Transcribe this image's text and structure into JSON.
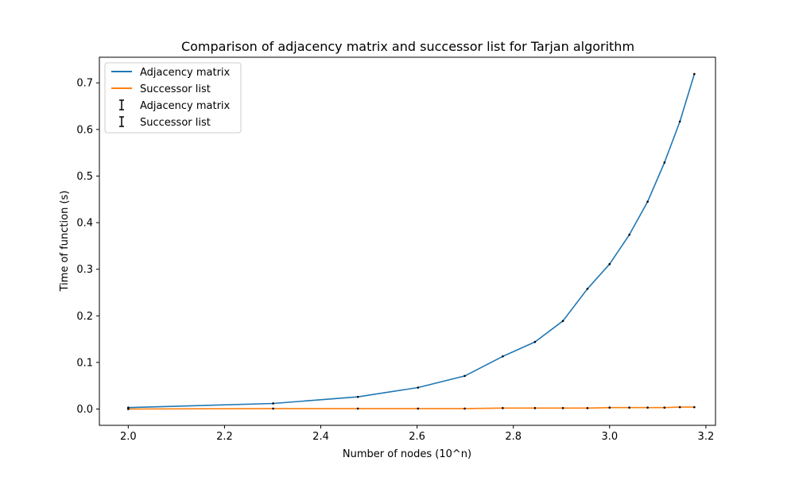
{
  "chart_data": {
    "type": "line",
    "title": "Comparison of adjacency matrix and successor list for Tarjan algorithm",
    "xlabel": "Number of nodes (10^n)",
    "ylabel": "Time of function (s)",
    "xlim": [
      1.94,
      3.22
    ],
    "ylim": [
      -0.035,
      0.755
    ],
    "xticks": [
      "2.0",
      "2.2",
      "2.4",
      "2.6",
      "2.8",
      "3.0",
      "3.2"
    ],
    "yticks": [
      "0.0",
      "0.1",
      "0.2",
      "0.3",
      "0.4",
      "0.5",
      "0.6",
      "0.7"
    ],
    "x": [
      2.0,
      2.301,
      2.477,
      2.602,
      2.699,
      2.778,
      2.845,
      2.903,
      2.954,
      3.0,
      3.041,
      3.079,
      3.114,
      3.146,
      3.176
    ],
    "series": [
      {
        "name": "Adjacency matrix",
        "color": "#1f77b4",
        "values": [
          0.003,
          0.012,
          0.026,
          0.046,
          0.071,
          0.113,
          0.144,
          0.189,
          0.258,
          0.311,
          0.374,
          0.445,
          0.529,
          0.617,
          0.719
        ]
      },
      {
        "name": "Successor list",
        "color": "#ff7f0e",
        "values": [
          0.0,
          0.001,
          0.001,
          0.001,
          0.001,
          0.002,
          0.002,
          0.002,
          0.002,
          0.003,
          0.003,
          0.003,
          0.003,
          0.004,
          0.004
        ]
      }
    ],
    "errorbar_legend": [
      "Adjacency matrix",
      "Successor list"
    ],
    "legend_position": "top-left",
    "grid": false
  }
}
